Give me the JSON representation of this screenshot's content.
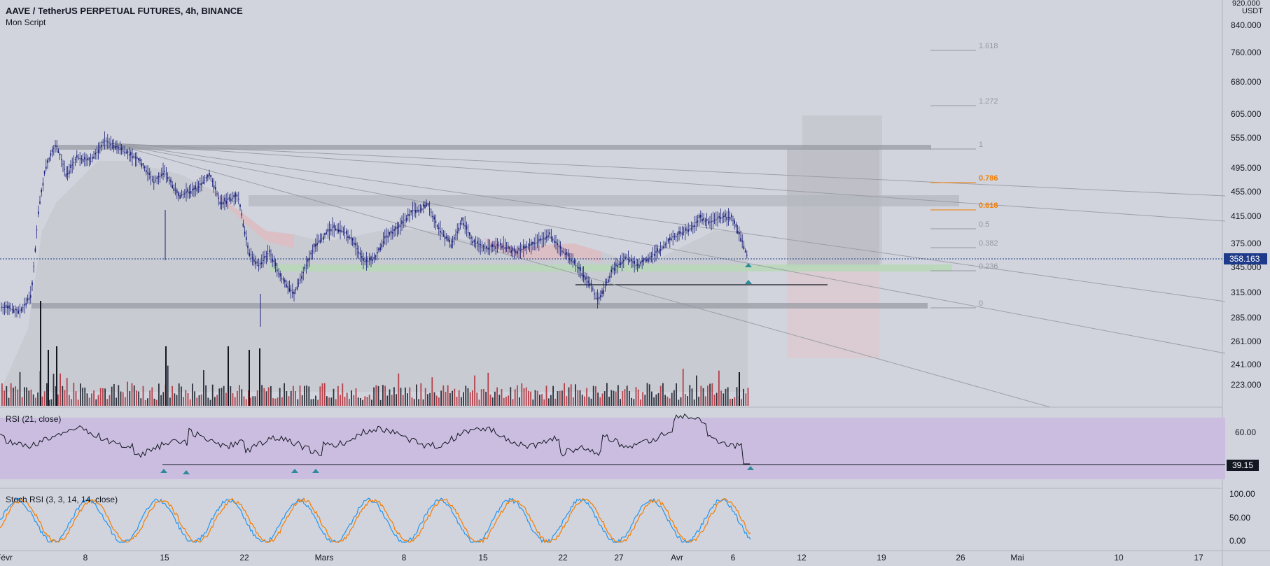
{
  "header": {
    "title": "AAVE / TetherUS PERPETUAL FUTURES, 4h, BINANCE",
    "subtitle": "Mon Script"
  },
  "price_axis": {
    "currency": "USDT",
    "top_cut_label": "920.000",
    "labels": [
      "840.000",
      "760.000",
      "680.000",
      "605.000",
      "555.000",
      "495.000",
      "455.000",
      "415.000",
      "375.000",
      "345.000",
      "315.000",
      "285.000",
      "261.000",
      "241.000",
      "223.000"
    ],
    "current_price": "358.163"
  },
  "fib": [
    {
      "label": "1.618",
      "color": "#9598a1"
    },
    {
      "label": "1.272",
      "color": "#9598a1"
    },
    {
      "label": "1",
      "color": "#9598a1"
    },
    {
      "label": "0.786",
      "color": "#f57c00"
    },
    {
      "label": "0.618",
      "color": "#f57c00"
    },
    {
      "label": "0.5",
      "color": "#9598a1"
    },
    {
      "label": "0.382",
      "color": "#9598a1"
    },
    {
      "label": "0.236",
      "color": "#9598a1"
    },
    {
      "label": "0",
      "color": "#9598a1"
    }
  ],
  "rsi": {
    "label": "RSI (21, close)",
    "axis_labels": [
      "60.00"
    ],
    "current_value": "39.15"
  },
  "stoch": {
    "label": "Stoch RSI (3, 3, 14, 14, close)",
    "axis_labels": [
      "100.00",
      "50.00",
      "0.00"
    ]
  },
  "time_axis": [
    "Févr",
    "8",
    "15",
    "22",
    "Mars",
    "8",
    "15",
    "22",
    "27",
    "Avr",
    "6",
    "12",
    "19",
    "26",
    "Mai",
    "10",
    "17"
  ],
  "colors": {
    "background": "#d1d4dc",
    "candle": "#1a1f7a",
    "rsi_band": "#cbbde0",
    "support_zone": "#b8d8b8",
    "fib_orange": "#f57c00",
    "price_tag": "#1e3a8a"
  }
}
